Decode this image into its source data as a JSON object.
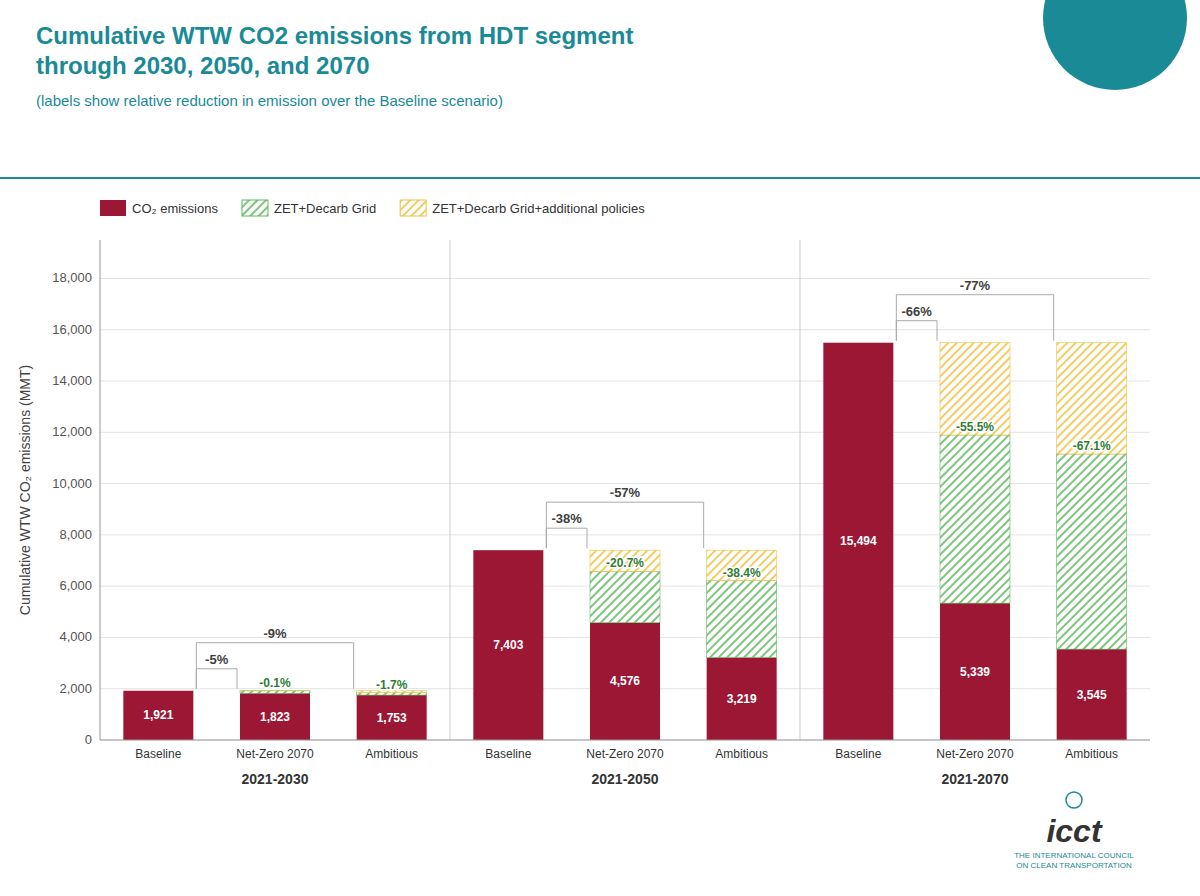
{
  "chart_data": {
    "type": "bar",
    "stacked": true,
    "title": "Cumulative WTW CO2 emissions from HDT segment\nthrough 2030, 2050, and 2070",
    "subtitle": "(labels show relative reduction in emission over the Baseline scenario)",
    "ylabel": "Cumulative WTW CO₂ emissions (MMT)",
    "groups": [
      "2021-2030",
      "2021-2050",
      "2021-2070"
    ],
    "categories": [
      "Baseline",
      "Net-Zero 2070",
      "Ambitious",
      "Baseline",
      "Net-Zero 2070",
      "Ambitious",
      "Baseline",
      "Net-Zero 2070",
      "Ambitious"
    ],
    "series": [
      {
        "name": "CO₂ emissions",
        "color": "#9B1734",
        "values": [
          1921,
          1823,
          1753,
          7403,
          4576,
          3219,
          15494,
          5339,
          3545
        ],
        "data_labels": true,
        "value_labels": [
          "1,921",
          "1,823",
          "1,753",
          "7,403",
          "4,576",
          "3,219",
          "15,494",
          "5,339",
          "3,545"
        ]
      },
      {
        "name": "ZET+Decarb Grid",
        "color": "#5cb85c",
        "values": [
          0,
          96,
          96,
          0,
          2000,
          3000,
          0,
          6557,
          7609
        ]
      },
      {
        "name": "ZET+Decarb Grid+additional policies",
        "color": "#f0c040",
        "values": [
          0,
          2,
          72,
          0,
          827,
          1184,
          0,
          3598,
          4340
        ]
      }
    ],
    "reduction_labels": [
      null,
      "-5%",
      "-9%",
      null,
      "-38%",
      "-57%",
      null,
      "-66%",
      "-77%"
    ],
    "decarb_labels": [
      null,
      "-0.1%",
      "-1.7%",
      null,
      "-20.7%",
      "-38.4%",
      null,
      "-55.5%",
      "-67.1%"
    ],
    "ylim": [
      0,
      19500
    ],
    "yticks": [
      0,
      {
        "value": 2000,
        "label": "2,000"
      },
      {
        "value": 4000,
        "label": "4,000"
      },
      {
        "value": 6000,
        "label": "6,000"
      },
      {
        "value": 8000,
        "label": "8,000"
      },
      {
        "value": 10000,
        "label": "10,000"
      },
      {
        "value": 12000,
        "label": "12,000"
      },
      {
        "value": 14000,
        "label": "14,000"
      },
      {
        "value": 16000,
        "label": "16,000"
      },
      {
        "value": 18000,
        "label": "18,000"
      }
    ],
    "grid": true,
    "legend": "top-left",
    "logo_text": "icct",
    "logo_caption": "THE INTERNATIONAL COUNCIL\nON CLEAN TRANSPORTATION"
  }
}
